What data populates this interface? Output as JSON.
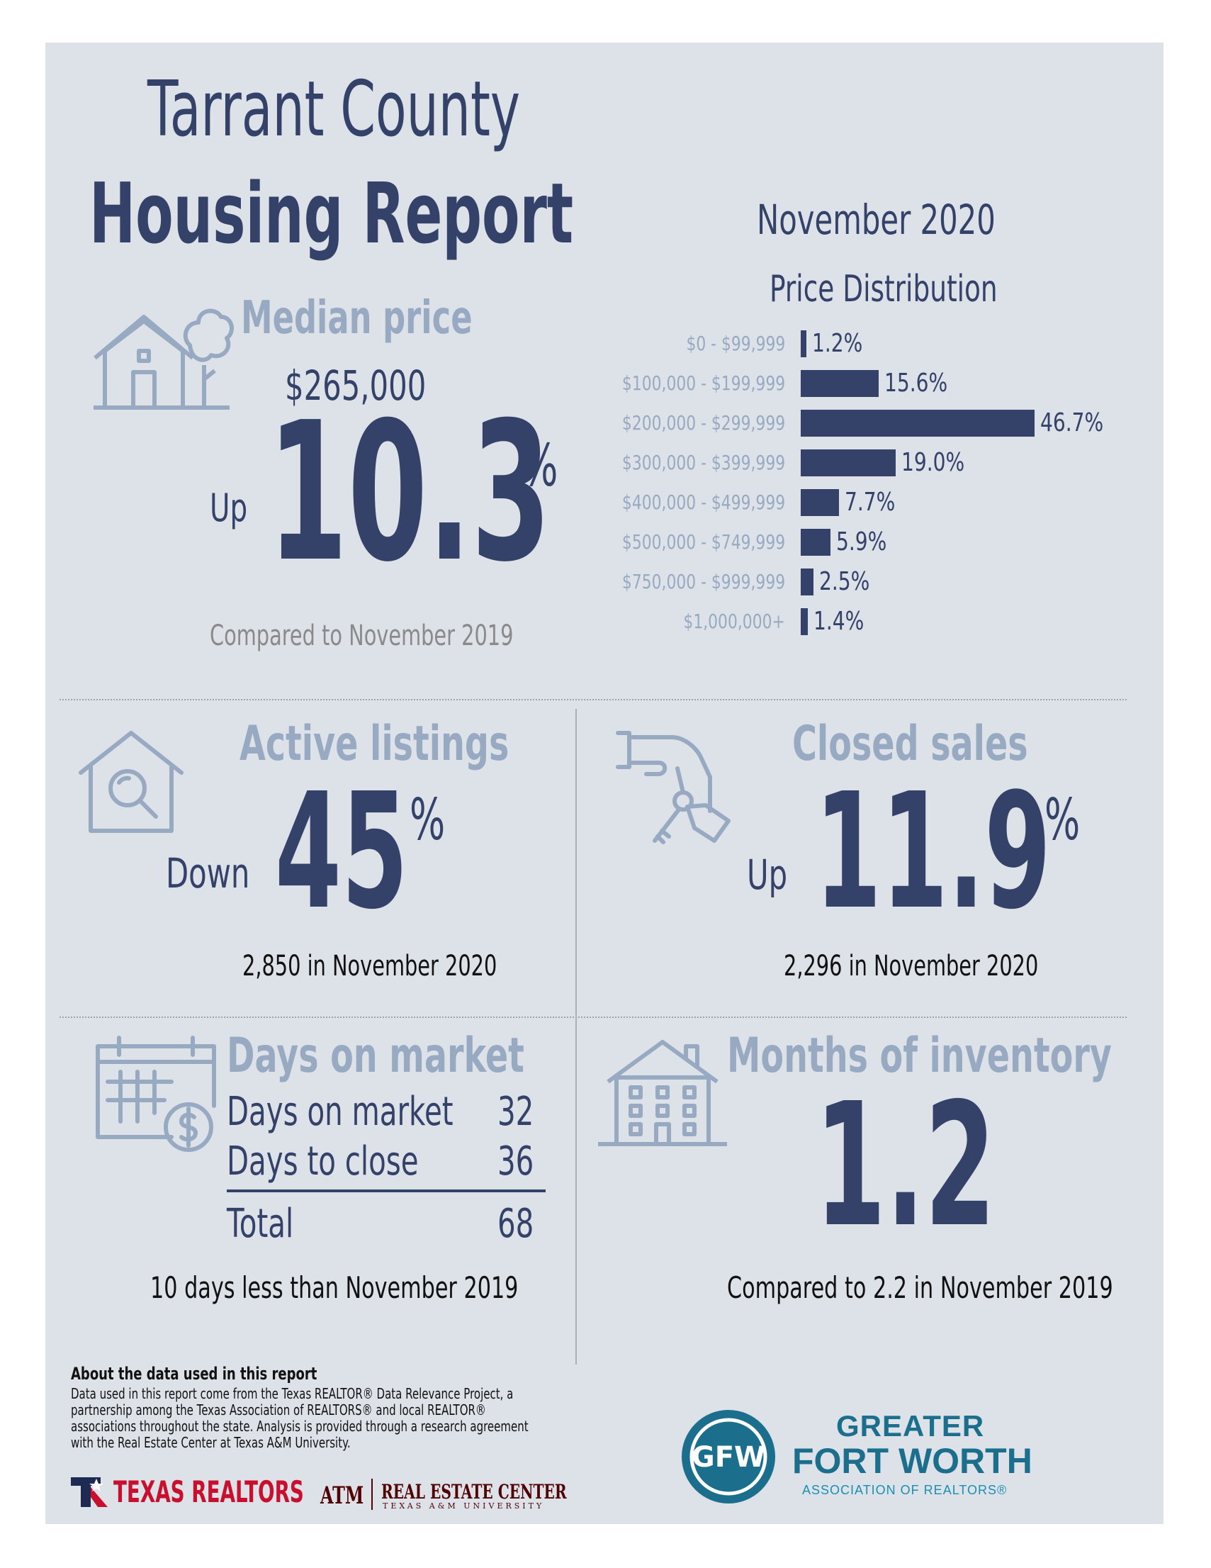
{
  "title": {
    "line1": "Tarrant County",
    "line2": "Housing Report"
  },
  "period": "November 2020",
  "median": {
    "heading": "Median price",
    "price": "$265,000",
    "direction": "Up",
    "change": "10.3",
    "unit": "%",
    "note": "Compared to November 2019"
  },
  "chart_data": {
    "type": "bar",
    "title": "Price Distribution",
    "categories": [
      "$0 - $99,999",
      "$100,000 - $199,999",
      "$200,000 - $299,999",
      "$300,000 - $399,999",
      "$400,000 - $499,999",
      "$500,000 - $749,999",
      "$750,000 - $999,999",
      "$1,000,000+"
    ],
    "values": [
      1.2,
      15.6,
      46.7,
      19.0,
      7.7,
      5.9,
      2.5,
      1.4
    ],
    "labels": [
      "1.2%",
      "15.6%",
      "46.7%",
      "19.0%",
      "7.7%",
      "5.9%",
      "2.5%",
      "1.4%"
    ],
    "orientation": "horizontal",
    "unit": "%",
    "grid": false
  },
  "active": {
    "heading": "Active listings",
    "direction": "Down",
    "change": "45",
    "unit": "%",
    "note": "2,850 in November 2020"
  },
  "closed": {
    "heading": "Closed sales",
    "direction": "Up",
    "change": "11.9",
    "unit": "%",
    "note": "2,296 in November 2020"
  },
  "dom": {
    "heading": "Days on market",
    "rows": [
      {
        "label": "Days on market",
        "value": "32"
      },
      {
        "label": "Days to close",
        "value": "36"
      }
    ],
    "total_label": "Total",
    "total_value": "68",
    "note": "10 days less than November 2019"
  },
  "inventory": {
    "heading": "Months of inventory",
    "value": "1.2",
    "note": "Compared to 2.2 in November 2019"
  },
  "about": {
    "heading": "About the data used in this report",
    "lines": [
      "Data used in this report come from the Texas REALTOR® Data Relevance Project, a",
      "partnership among the Texas Association of REALTORS® and local REALTOR®",
      "associations throughout the state. Analysis is provided through a research agreement",
      "with the Real Estate Center at Texas A&M University."
    ]
  },
  "logos": {
    "texas_realtors": "TEXAS REALTORS",
    "rec_mark": "ATM",
    "rec_name": "REAL ESTATE CENTER",
    "rec_sub": "TEXAS A&M UNIVERSITY",
    "gfw_line1": "GREATER",
    "gfw_line2": "FORT WORTH",
    "gfw_line3": "ASSOCIATION OF REALTORS®",
    "gfw_mark": "GFW"
  },
  "colors": {
    "navy": "#34426a",
    "light": "#98aac2",
    "panel": "#dde1e8",
    "gfw_teal": "#1b6e8c"
  }
}
